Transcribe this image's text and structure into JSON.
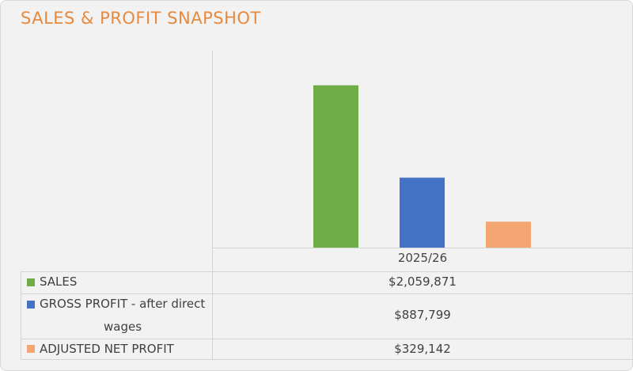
{
  "title": "SALES & PROFIT SNAPSHOT",
  "chart_data": {
    "type": "bar",
    "title": "SALES & PROFIT SNAPSHOT",
    "categories": [
      "2025/26"
    ],
    "series": [
      {
        "name": "SALES",
        "values": [
          2059871
        ],
        "label": "$2,059,871",
        "color": "#70ad47"
      },
      {
        "name": "GROSS PROFIT - after direct wages",
        "values": [
          887799
        ],
        "label": "$887,799",
        "color": "#4472c4"
      },
      {
        "name": "ADJUSTED NET PROFIT",
        "values": [
          329142
        ],
        "label": "$329,142",
        "color": "#f4a672"
      }
    ],
    "ylim": [
      0,
      2500000
    ],
    "grid": false,
    "legend": "data-table-below"
  },
  "table": {
    "rows": [
      {
        "label_line1": "SALES",
        "label_line2": "",
        "value": "$2,059,871"
      },
      {
        "label_line1": "GROSS PROFIT - after direct",
        "label_line2": "wages",
        "value": "$887,799"
      },
      {
        "label_line1": "ADJUSTED NET PROFIT",
        "label_line2": "",
        "value": "$329,142"
      }
    ]
  }
}
